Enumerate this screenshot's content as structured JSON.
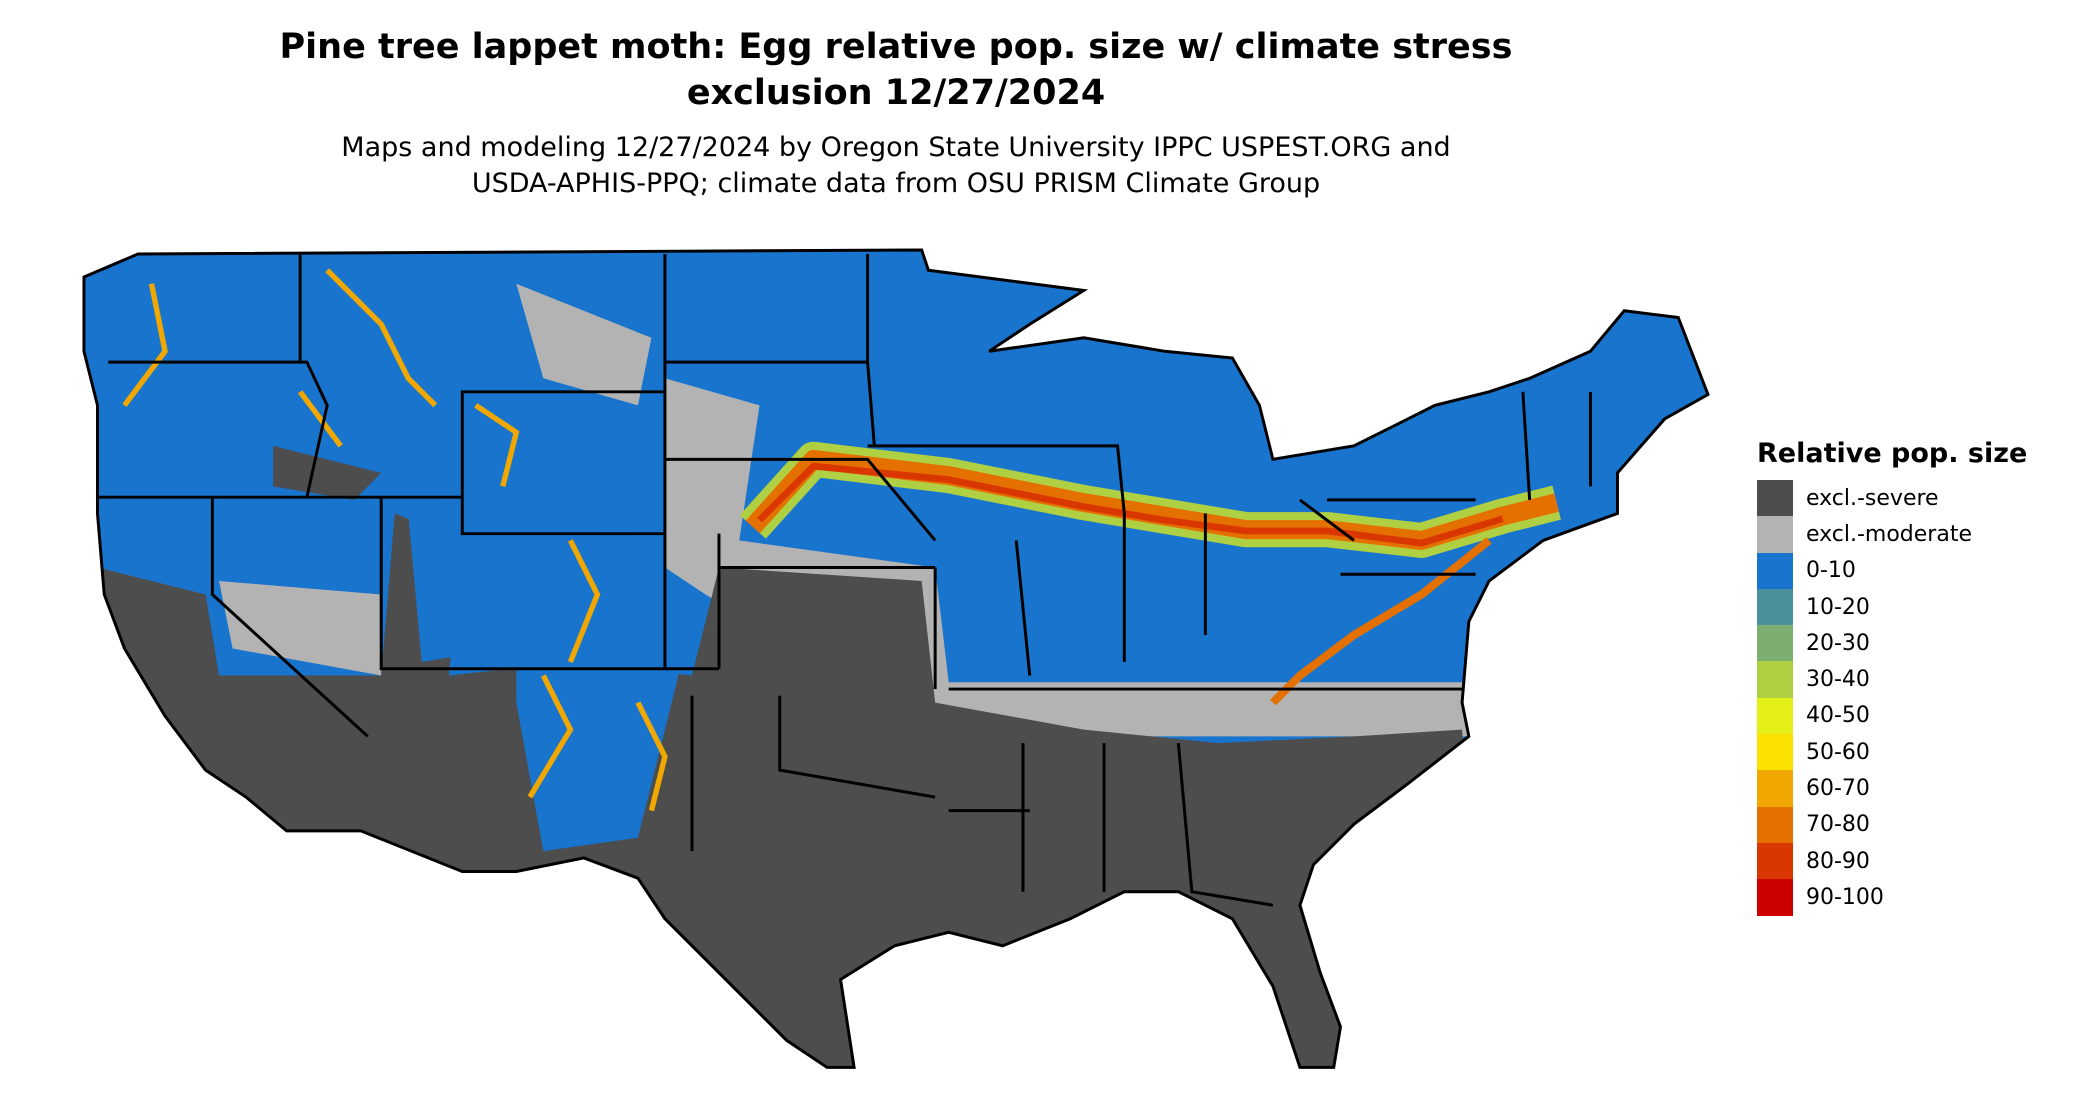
{
  "title": {
    "line1": "Pine tree lappet moth: Egg relative pop. size w/ climate stress",
    "line2": "exclusion 12/27/2024"
  },
  "subtitle": {
    "line1": "Maps and modeling 12/27/2024 by Oregon State University IPPC USPEST.ORG and",
    "line2": "USDA-APHIS-PPQ; climate data from OSU PRISM Climate Group"
  },
  "map": {
    "region": "Contiguous United States",
    "colors": {
      "excl_severe": "#4d4d4d",
      "excl_moderate": "#b3b3b3",
      "low": "#1874cd",
      "state_border": "#000000"
    }
  },
  "legend": {
    "title": "Relative pop. size",
    "items": [
      {
        "label": "excl.-severe",
        "color": "#4d4d4d"
      },
      {
        "label": "excl.-moderate",
        "color": "#b3b3b3"
      },
      {
        "label": "0-10",
        "color": "#1874cd"
      },
      {
        "label": "10-20",
        "color": "#4a909d"
      },
      {
        "label": "20-30",
        "color": "#7cae70"
      },
      {
        "label": "30-40",
        "color": "#b0d043"
      },
      {
        "label": "40-50",
        "color": "#e5ef18"
      },
      {
        "label": "50-60",
        "color": "#fae100"
      },
      {
        "label": "60-70",
        "color": "#f0a800"
      },
      {
        "label": "70-80",
        "color": "#e47000"
      },
      {
        "label": "80-90",
        "color": "#da3600"
      },
      {
        "label": "90-100",
        "color": "#cc0000"
      }
    ]
  }
}
